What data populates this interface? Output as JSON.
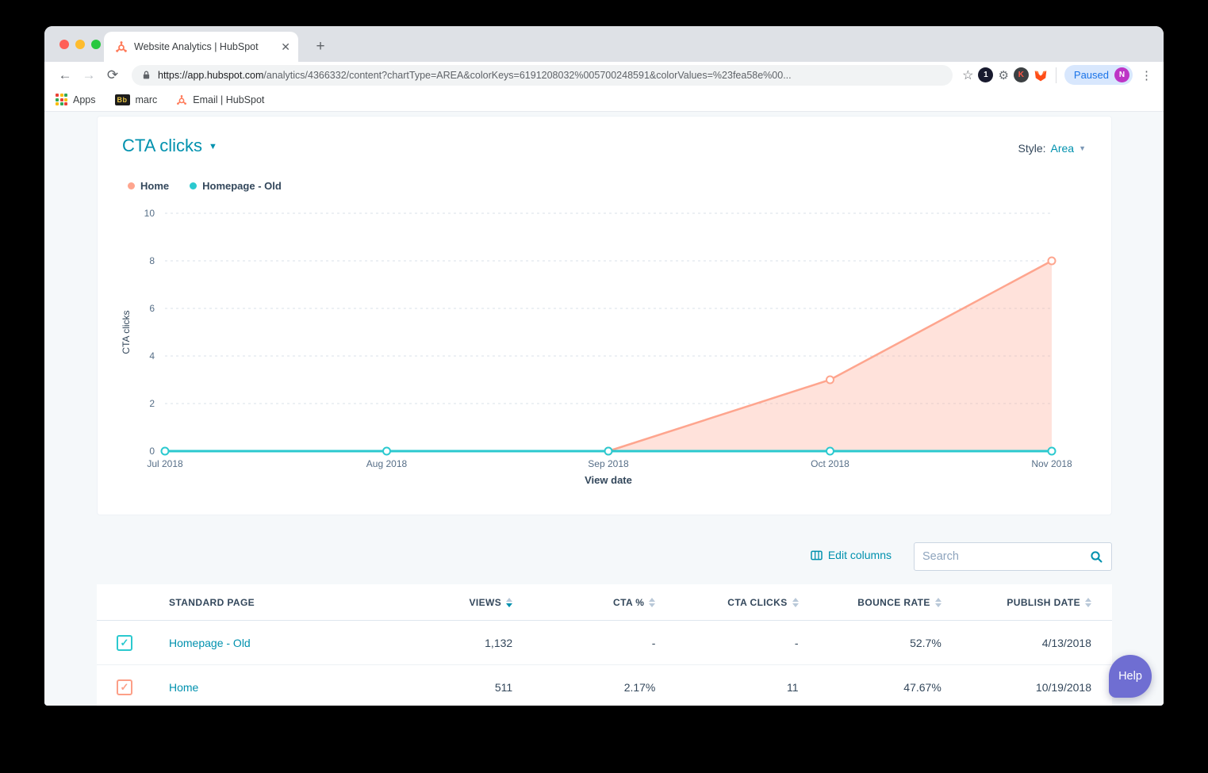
{
  "browser": {
    "tab_title": "Website Analytics | HubSpot",
    "close_tab": "✕",
    "new_tab": "+",
    "url_domain": "https://app.hubspot.com",
    "url_path": "/analytics/4366332/content?chartType=AREA&colorKeys=6191208032%005700248591&colorValues=%23fea58e%00...",
    "badge_count": "1",
    "extension_k": "K",
    "paused_label": "Paused",
    "profile_initial": "N",
    "bookmarks": [
      {
        "label": "Apps"
      },
      {
        "label": "marc",
        "icon_text": "Bb"
      },
      {
        "label": "Email | HubSpot"
      }
    ]
  },
  "chart_card": {
    "title": "CTA clicks",
    "style_label": "Style:",
    "style_value": "Area",
    "legend": [
      {
        "label": "Home",
        "color": "#fea58e"
      },
      {
        "label": "Homepage - Old",
        "color": "#2bc9cf"
      }
    ]
  },
  "chart_data": {
    "type": "area",
    "title": "CTA clicks",
    "x": [
      "Jul 2018",
      "Aug 2018",
      "Sep 2018",
      "Oct 2018",
      "Nov 2018"
    ],
    "xlabel": "View date",
    "ylabel": "CTA clicks",
    "ylim": [
      0,
      10
    ],
    "yticks": [
      0,
      2,
      4,
      6,
      8,
      10
    ],
    "grid": "dashed-horizontal",
    "legend_position": "top-left",
    "series": [
      {
        "name": "Home",
        "color": "#fea58e",
        "fill": true,
        "values": [
          null,
          null,
          0,
          3,
          8
        ]
      },
      {
        "name": "Homepage - Old",
        "color": "#2bc9cf",
        "fill": false,
        "values": [
          0,
          0,
          0,
          0,
          0
        ]
      }
    ]
  },
  "table_toolbar": {
    "edit_columns": "Edit columns",
    "search_placeholder": "Search"
  },
  "table": {
    "columns": [
      "STANDARD PAGE",
      "VIEWS",
      "CTA %",
      "CTA CLICKS",
      "BOUNCE RATE",
      "PUBLISH DATE"
    ],
    "sort": {
      "column": "VIEWS",
      "direction": "desc"
    },
    "rows": [
      {
        "checkbox_color": "#2bc9cf",
        "checked": true,
        "page": "Homepage - Old",
        "views": "1,132",
        "cta_pct": "-",
        "cta_clicks": "-",
        "bounce_rate": "52.7%",
        "publish_date": "4/13/2018"
      },
      {
        "checkbox_color": "#fea58e",
        "checked": true,
        "page": "Home",
        "views": "511",
        "cta_pct": "2.17%",
        "cta_clicks": "11",
        "bounce_rate": "47.67%",
        "publish_date": "10/19/2018"
      }
    ]
  },
  "help_button": {
    "label": "Help",
    "color": "#6f6ed2"
  }
}
